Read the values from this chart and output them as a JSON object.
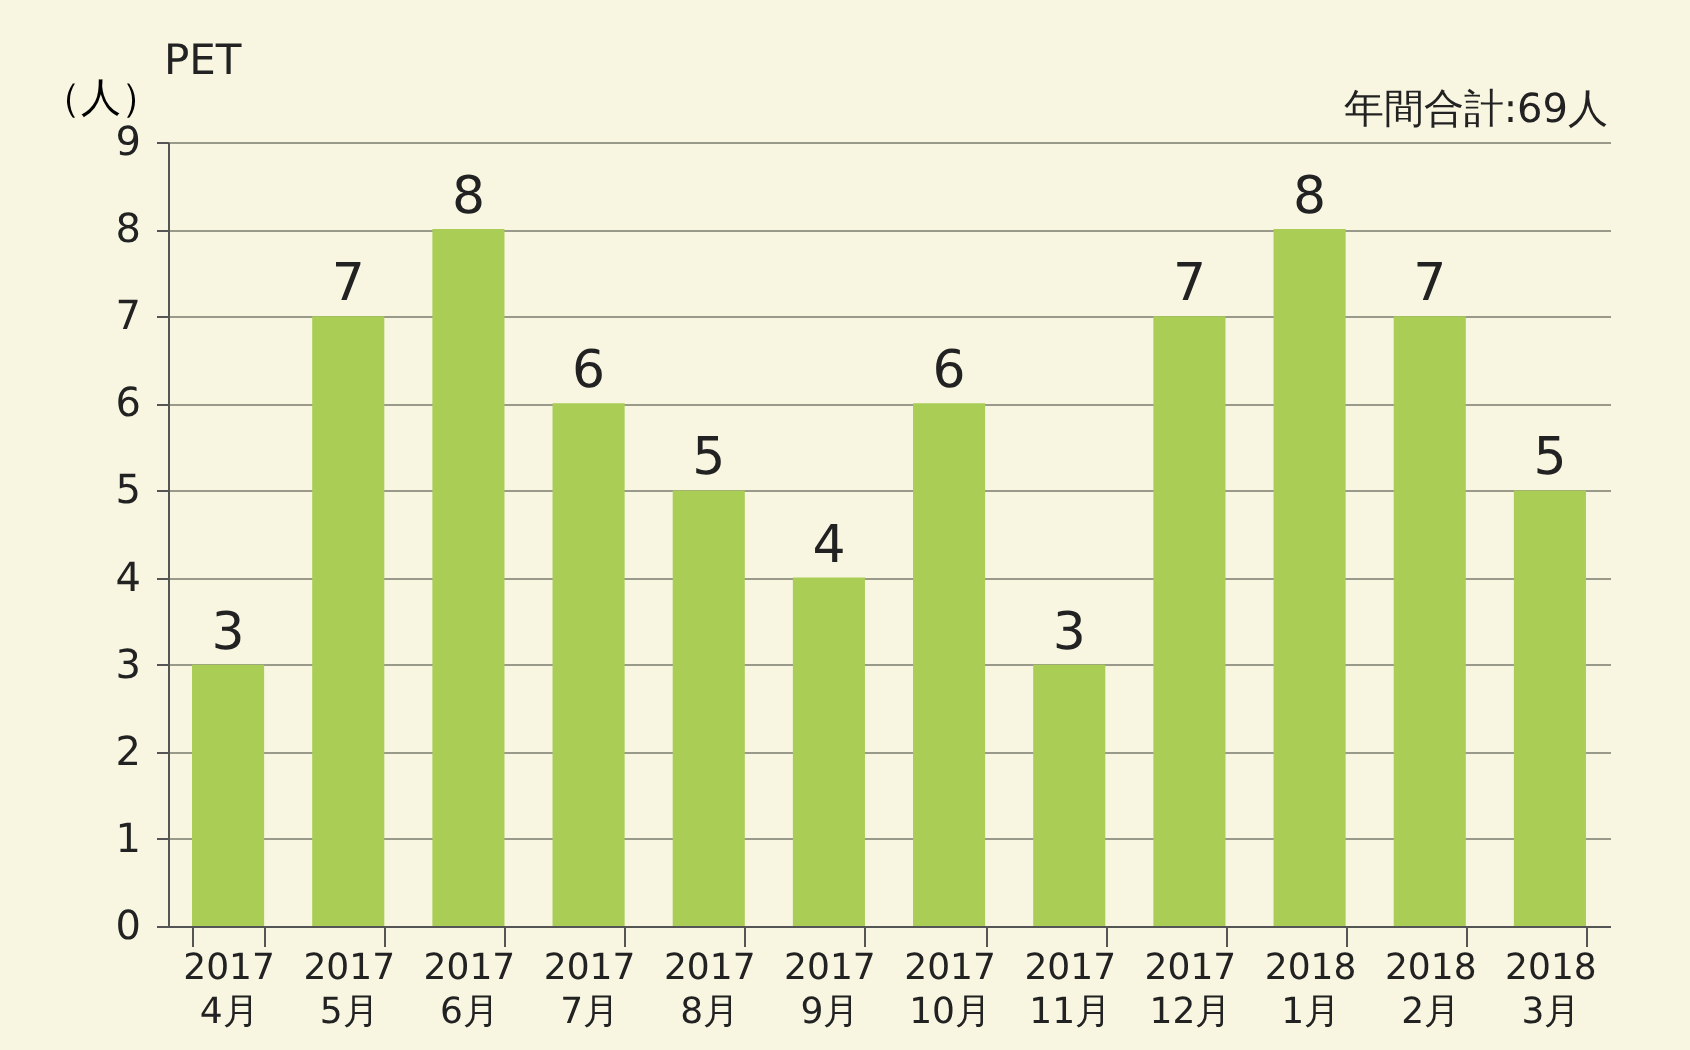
{
  "chart_data": {
    "type": "bar",
    "title": "PET",
    "ylabel": "（人）",
    "annotations": [
      "年間合計:69人"
    ],
    "categories": [
      "2017\n4月",
      "2017\n5月",
      "2017\n6月",
      "2017\n7月",
      "2017\n8月",
      "2017\n9月",
      "2017\n10月",
      "2017\n11月",
      "2017\n12月",
      "2018\n1月",
      "2018\n2月",
      "2018\n3月"
    ],
    "values": [
      3,
      7,
      8,
      6,
      5,
      4,
      6,
      3,
      7,
      8,
      7,
      5
    ],
    "color": "#a9cd55",
    "ylim": [
      0,
      9
    ],
    "yticks": [
      0,
      1,
      2,
      3,
      4,
      5,
      6,
      7,
      8,
      9
    ],
    "grid": "y",
    "data_labels": true
  }
}
